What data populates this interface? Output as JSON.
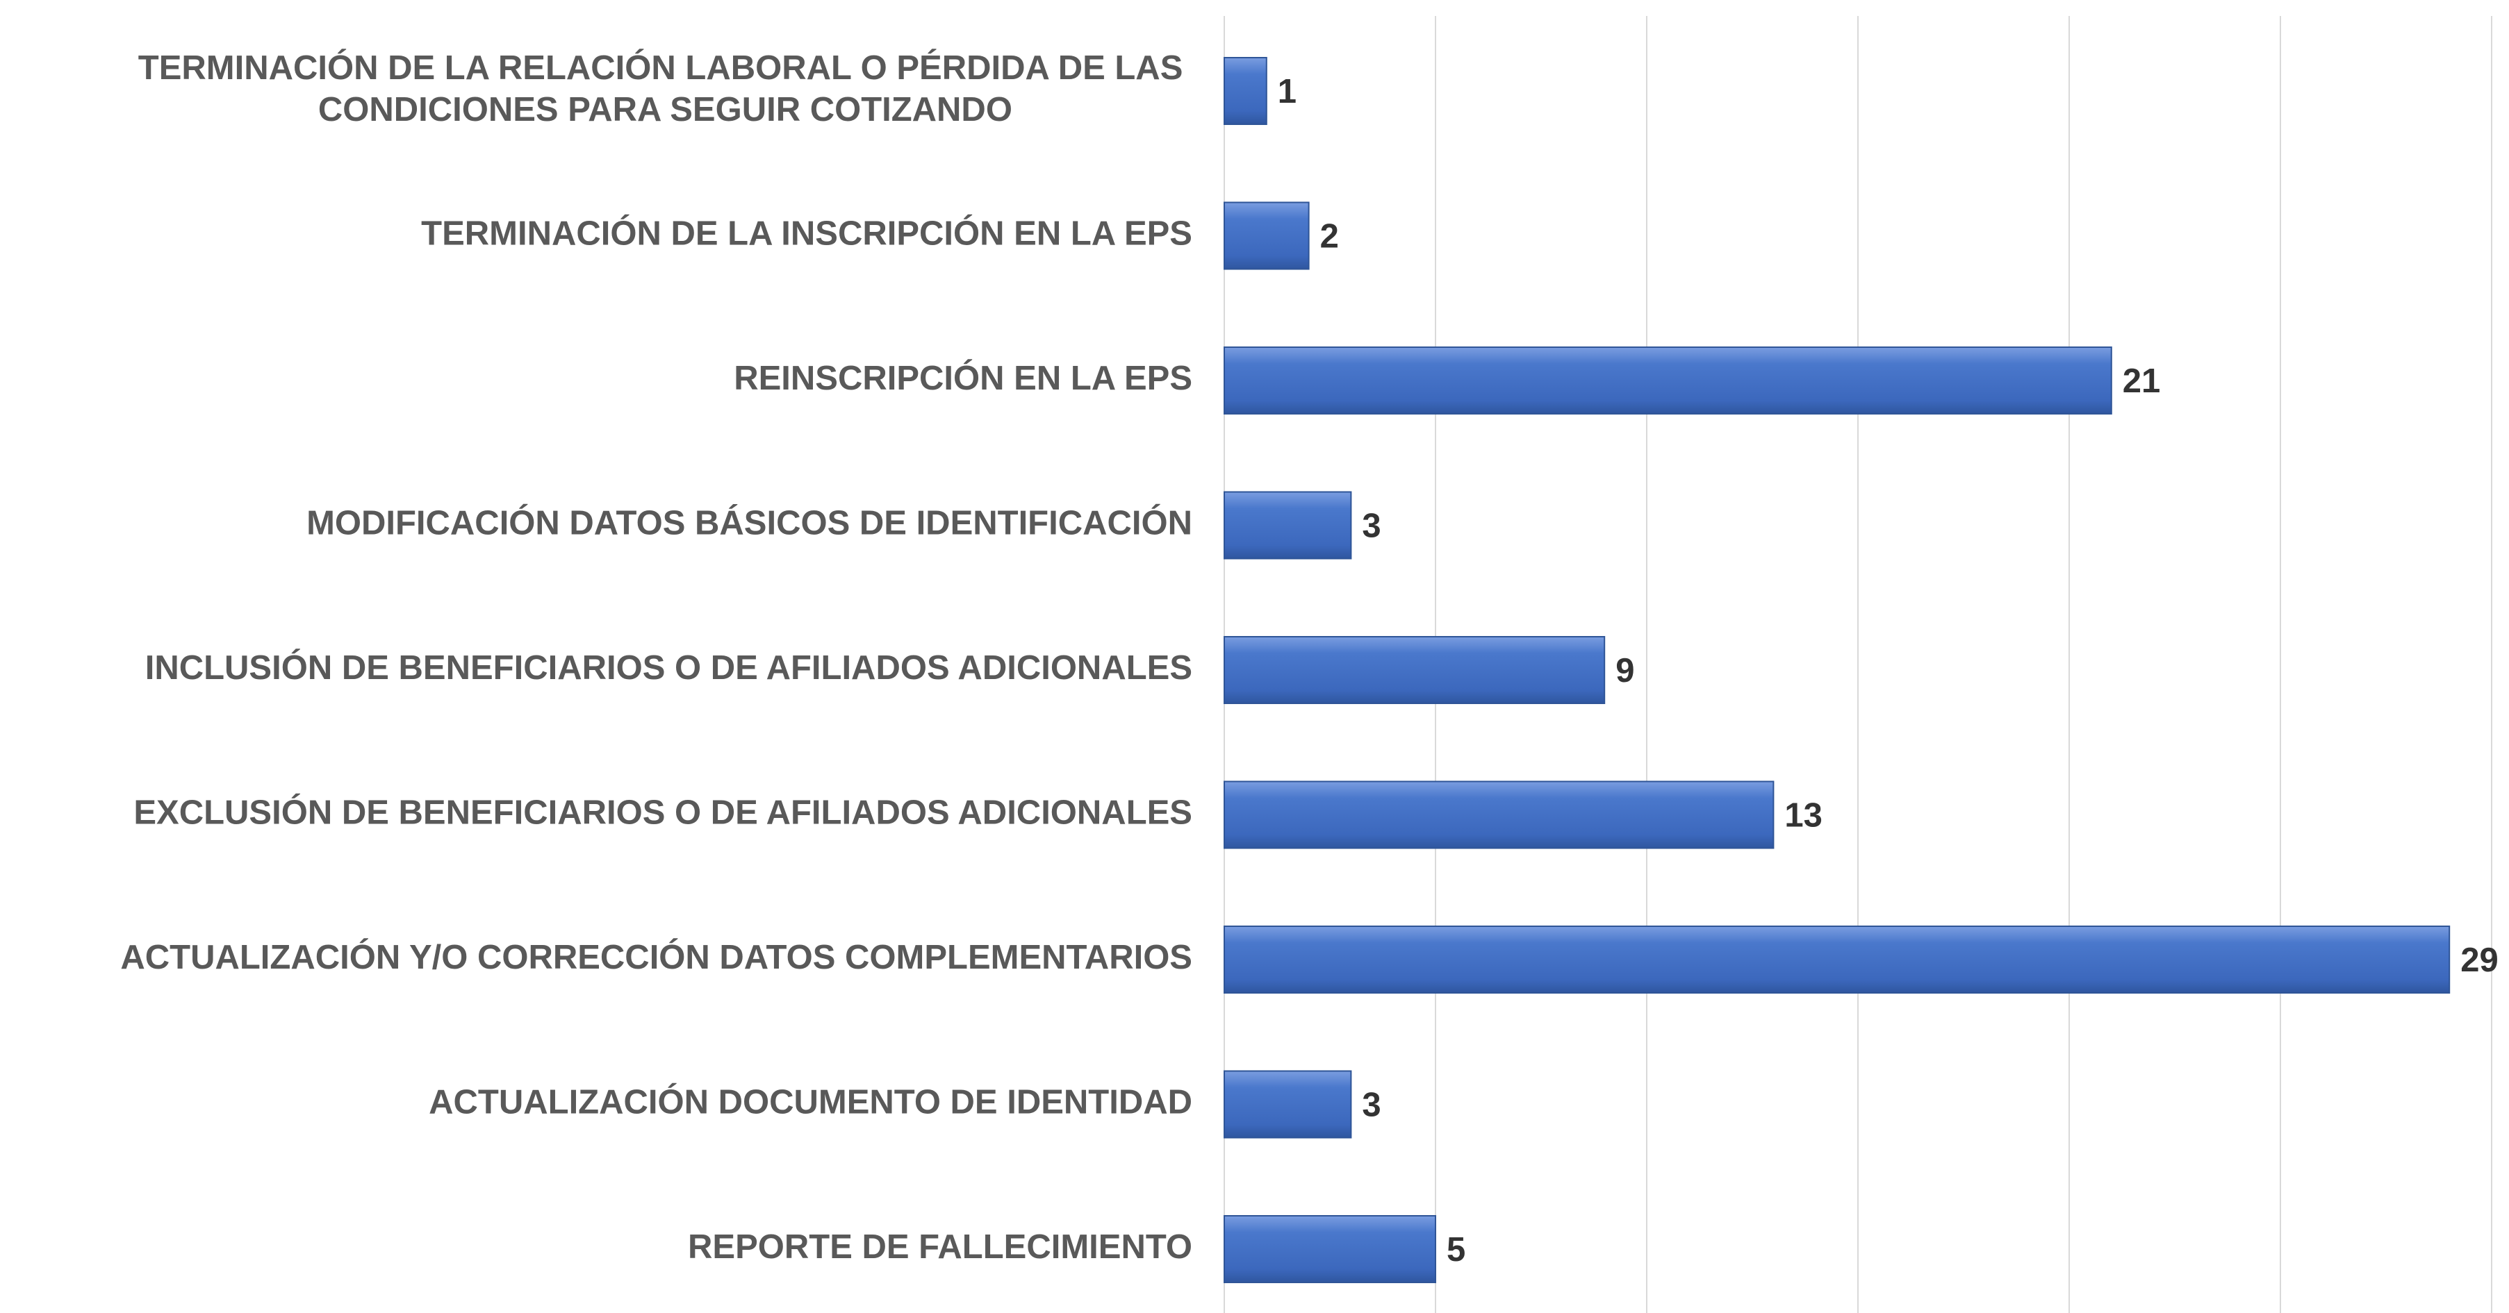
{
  "chart_data": {
    "type": "hbar",
    "categories": [
      "TERMINACIÓN DE LA RELACIÓN LABORAL O PÉRDIDA DE LAS CONDICIONES PARA SEGUIR COTIZANDO",
      "TERMINACIÓN DE LA INSCRIPCIÓN EN LA EPS",
      "REINSCRIPCIÓN EN LA EPS",
      "MODIFICACIÓN DATOS BÁSICOS DE IDENTIFICACIÓN",
      "INCLUSIÓN DE BENEFICIARIOS O DE AFILIADOS ADICIONALES",
      "EXCLUSIÓN DE BENEFICIARIOS O DE AFILIADOS ADICIONALES",
      "ACTUALIZACIÓN Y/O CORRECCIÓN DATOS COMPLEMENTARIOS",
      "ACTUALIZACIÓN DOCUMENTO DE IDENTIDAD",
      "REPORTE DE FALLECIMIENTO"
    ],
    "values": [
      1,
      2,
      21,
      3,
      9,
      13,
      29,
      3,
      5
    ],
    "color": "#4472c4",
    "xlim": [
      0,
      30
    ],
    "xticks": [
      0,
      5,
      10,
      15,
      20,
      25,
      30
    ],
    "grid": true
  }
}
